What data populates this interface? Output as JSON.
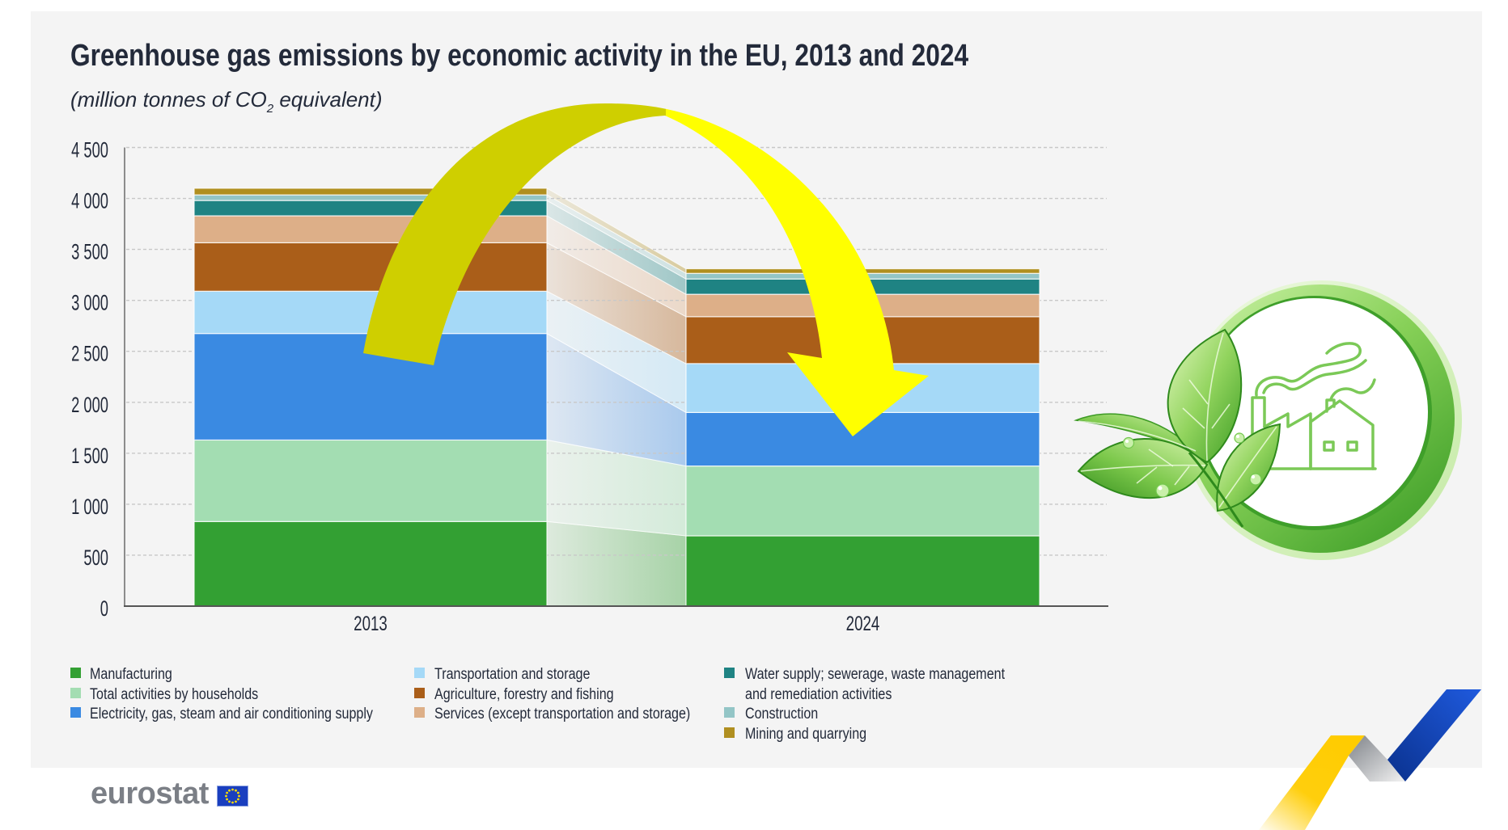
{
  "header": {
    "title": "Greenhouse gas emissions by economic activity in the EU, 2013 and 2024",
    "subtitle_prefix": "(million tonnes of CO",
    "subtitle_subscript": "2",
    "subtitle_suffix": " equivalent)"
  },
  "chart_data": {
    "type": "bar",
    "stacked": true,
    "title": "Greenhouse gas emissions by economic activity in the EU, 2013 and 2024",
    "subtitle": "(million tonnes of CO2 equivalent)",
    "xlabel": "",
    "ylabel": "",
    "categories": [
      "2013",
      "2024"
    ],
    "ylim": [
      0,
      4500
    ],
    "yticks": [
      0,
      500,
      1000,
      1500,
      2000,
      2500,
      3000,
      3500,
      4000,
      4500
    ],
    "ytick_labels": [
      "0",
      "500",
      "1 000",
      "1 500",
      "2 000",
      "2 500",
      "3 000",
      "3 500",
      "4 000",
      "4 500"
    ],
    "grid": true,
    "legend_position": "bottom",
    "series": [
      {
        "name": "Manufacturing",
        "color": "#33a033",
        "values": [
          830,
          690
        ]
      },
      {
        "name": "Total activities by households",
        "color": "#a3ddb2",
        "values": [
          800,
          685
        ]
      },
      {
        "name": "Electricity, gas, steam and air conditioning supply",
        "color": "#3a8ae2",
        "values": [
          1045,
          525
        ]
      },
      {
        "name": "Transportation and storage",
        "color": "#a5d9f7",
        "values": [
          415,
          480
        ]
      },
      {
        "name": "Agriculture, forestry and fishing",
        "color": "#aa5e19",
        "values": [
          475,
          460
        ]
      },
      {
        "name": "Services (except transportation and storage)",
        "color": "#ddaf88",
        "values": [
          265,
          220
        ]
      },
      {
        "name": "Water supply; sewerage, waste management and remediation activities",
        "color": "#1f8383",
        "values": [
          150,
          150
        ]
      },
      {
        "name": "Construction",
        "color": "#93c5c6",
        "values": [
          55,
          55
        ]
      },
      {
        "name": "Mining and quarrying",
        "color": "#b08f20",
        "values": [
          65,
          45
        ]
      }
    ],
    "annotations": [
      {
        "type": "arrow",
        "from": "2013",
        "to": "2024",
        "meaning": "decrease"
      }
    ]
  },
  "decorations": {
    "arrow_colors": [
      "#cfcf00",
      "#ffff00"
    ],
    "eco_icon": "leaf-factory-icon",
    "ribbon_colors": [
      "#ffcc00",
      "#9a9ca1",
      "#1d4fcf"
    ]
  },
  "branding": {
    "logo_text": "eurostat",
    "logo_flag": "eu-flag-icon",
    "flag_color": "#1a3fbf",
    "star_color": "#ffdd00"
  }
}
